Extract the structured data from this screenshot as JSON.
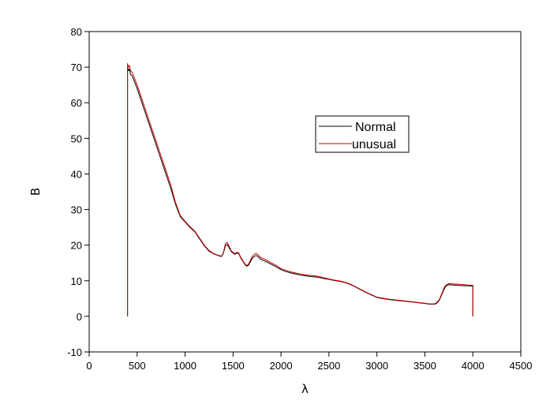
{
  "chart_data": {
    "type": "line",
    "title": "",
    "xlabel": "λ",
    "ylabel": "B",
    "xlim": [
      0,
      4500
    ],
    "ylim": [
      -10,
      80
    ],
    "xticks": [
      0,
      500,
      1000,
      1500,
      2000,
      2500,
      3000,
      3500,
      4000,
      4500
    ],
    "yticks": [
      -10,
      0,
      10,
      20,
      30,
      40,
      50,
      60,
      70,
      80
    ],
    "grid": false,
    "legend_position": "top-right",
    "series": [
      {
        "name": "Normal",
        "color": "#000000",
        "x": [
          400,
          400,
          410,
          420,
          430,
          450,
          500,
          550,
          600,
          650,
          700,
          750,
          800,
          850,
          900,
          950,
          1000,
          1050,
          1100,
          1150,
          1200,
          1250,
          1300,
          1350,
          1380,
          1400,
          1420,
          1440,
          1460,
          1480,
          1500,
          1520,
          1540,
          1560,
          1580,
          1600,
          1620,
          1640,
          1660,
          1680,
          1700,
          1720,
          1740,
          1760,
          1780,
          1800,
          1850,
          1900,
          1950,
          2000,
          2050,
          2100,
          2150,
          2200,
          2250,
          2300,
          2350,
          2400,
          2450,
          2500,
          2550,
          2600,
          2650,
          2700,
          2750,
          2800,
          2850,
          2900,
          2950,
          3000,
          3100,
          3200,
          3300,
          3400,
          3500,
          3550,
          3600,
          3620,
          3650,
          3680,
          3700,
          3720,
          3750,
          3800,
          3850,
          3900,
          3950,
          3990,
          4000,
          4000
        ],
        "y": [
          0,
          70,
          69,
          69.5,
          68,
          67.5,
          64,
          60,
          56,
          52,
          48,
          44,
          40,
          36,
          31.5,
          28,
          26.5,
          25,
          23.8,
          21.8,
          19.8,
          18.3,
          17.5,
          17,
          16.8,
          17.8,
          19.8,
          20.2,
          19.2,
          18.2,
          17.8,
          17.4,
          17.8,
          17.6,
          16.4,
          15.6,
          14.7,
          14.1,
          14.3,
          15.3,
          16.3,
          16.8,
          17.1,
          16.8,
          16.2,
          15.9,
          15.3,
          14.6,
          13.9,
          13.1,
          12.6,
          12.2,
          11.9,
          11.6,
          11.4,
          11.2,
          11.1,
          10.9,
          10.6,
          10.4,
          10.1,
          9.9,
          9.6,
          9.2,
          8.6,
          7.9,
          7.2,
          6.5,
          5.9,
          5.3,
          4.8,
          4.5,
          4.2,
          3.9,
          3.6,
          3.4,
          3.4,
          3.6,
          4.5,
          6.3,
          7.6,
          8.5,
          8.9,
          8.8,
          8.7,
          8.6,
          8.6,
          8.5,
          8.5,
          0
        ]
      },
      {
        "name": "unusual",
        "color": "#cc0000",
        "x": [
          400,
          400,
          410,
          420,
          430,
          450,
          500,
          550,
          600,
          650,
          700,
          750,
          800,
          850,
          900,
          950,
          1000,
          1050,
          1100,
          1150,
          1200,
          1250,
          1300,
          1350,
          1380,
          1400,
          1420,
          1440,
          1460,
          1480,
          1500,
          1520,
          1540,
          1560,
          1580,
          1600,
          1620,
          1640,
          1660,
          1680,
          1700,
          1720,
          1740,
          1760,
          1780,
          1800,
          1850,
          1900,
          1950,
          2000,
          2050,
          2100,
          2150,
          2200,
          2250,
          2300,
          2350,
          2400,
          2450,
          2500,
          2550,
          2600,
          2650,
          2700,
          2750,
          2800,
          2850,
          2900,
          2950,
          3000,
          3100,
          3200,
          3300,
          3400,
          3500,
          3550,
          3600,
          3620,
          3650,
          3680,
          3700,
          3720,
          3750,
          3800,
          3850,
          3900,
          3950,
          3990,
          4000,
          4000
        ],
        "y": [
          0,
          71,
          70,
          70.5,
          69,
          68.5,
          65,
          61,
          57,
          53,
          49,
          45,
          41,
          37,
          32,
          28.3,
          26.7,
          25.2,
          24,
          22,
          20,
          18.5,
          17.6,
          17.1,
          16.9,
          18,
          20.4,
          20.8,
          19.6,
          18.4,
          18,
          17.6,
          18,
          17.8,
          16.6,
          15.8,
          14.9,
          14.3,
          14.6,
          15.7,
          16.8,
          17.4,
          17.7,
          17.3,
          16.7,
          16.4,
          15.8,
          15,
          14.3,
          13.4,
          12.9,
          12.5,
          12.2,
          11.9,
          11.7,
          11.5,
          11.4,
          11.2,
          10.8,
          10.5,
          10.2,
          10,
          9.7,
          9.3,
          8.7,
          8,
          7.3,
          6.6,
          6,
          5.4,
          4.9,
          4.6,
          4.3,
          4,
          3.7,
          3.5,
          3.5,
          3.8,
          4.7,
          6.6,
          8,
          8.8,
          9.2,
          9.1,
          9,
          8.9,
          8.8,
          8.7,
          8.7,
          0
        ]
      }
    ]
  }
}
